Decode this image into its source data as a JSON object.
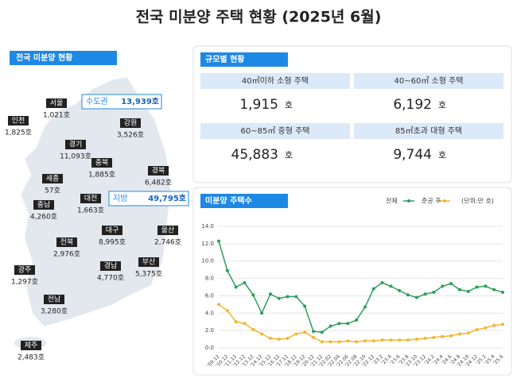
{
  "header": {
    "title": "전국 미분양 주택 현황  (2025년 6월)"
  },
  "map": {
    "label": "전국 미분양 현황",
    "callouts": [
      {
        "name": "수도권",
        "value": "13,939호"
      },
      {
        "name": "지방",
        "value": "49,795호"
      }
    ],
    "regions": [
      {
        "name": "서울",
        "value": "1,021호"
      },
      {
        "name": "인천",
        "value": "1,825호"
      },
      {
        "name": "경기",
        "value": "11,093호"
      },
      {
        "name": "강원",
        "value": "3,526호"
      },
      {
        "name": "충북",
        "value": "1,885호"
      },
      {
        "name": "경북",
        "value": "6,482호"
      },
      {
        "name": "세종",
        "value": "57호"
      },
      {
        "name": "충남",
        "value": "4,260호"
      },
      {
        "name": "대전",
        "value": "1,663호"
      },
      {
        "name": "대구",
        "value": "8,995호"
      },
      {
        "name": "울산",
        "value": "2,746호"
      },
      {
        "name": "전북",
        "value": "2,976호"
      },
      {
        "name": "경남",
        "value": "4,770호"
      },
      {
        "name": "부산",
        "value": "5,375호"
      },
      {
        "name": "광주",
        "value": "1,297호"
      },
      {
        "name": "전남",
        "value": "3,280호"
      },
      {
        "name": "제주",
        "value": "2,483호"
      }
    ]
  },
  "size_table": {
    "label": "규모별 현황",
    "cells": [
      {
        "name": "40㎡이하 소형 주택",
        "value": "1,915",
        "unit": "호"
      },
      {
        "name": "40~60㎡ 소형 주택",
        "value": "6,192",
        "unit": "호"
      },
      {
        "name": "60~85㎡ 중형 주택",
        "value": "45,883",
        "unit": "호"
      },
      {
        "name": "85㎡초과 대형 주택",
        "value": "9,744",
        "unit": "호"
      }
    ]
  },
  "chart_data": {
    "type": "line",
    "title": "미분양 주택수",
    "unit_note": "(단위:만 호)",
    "categories": [
      "'09.12",
      "'10.12",
      "'11.12",
      "'12.12",
      "'13.12",
      "'14.12",
      "'15.12",
      "'16.12",
      "'17.12",
      "'18.12",
      "'19.12",
      "'20.12",
      "'21.12",
      "'22.02",
      "'22.04",
      "'22.06",
      "'22.08",
      "'22.10",
      "'22.12",
      "'23.2",
      "'23.4",
      "'23.6",
      "'23.8",
      "'23.10",
      "'23.12",
      "'24.2",
      "'24.4",
      "'24.6",
      "'24.8",
      "'24.10",
      "'24.12",
      "'25.2",
      "'25.4",
      "'25.6"
    ],
    "series": [
      {
        "name": "전체",
        "color": "#2e9e5b",
        "values": [
          12.3,
          8.9,
          7.0,
          7.5,
          6.1,
          4.0,
          6.2,
          5.7,
          5.9,
          5.9,
          4.8,
          1.9,
          1.8,
          2.5,
          2.8,
          2.8,
          3.2,
          4.7,
          6.8,
          7.5,
          7.1,
          6.6,
          6.1,
          5.8,
          6.2,
          6.4,
          7.1,
          7.4,
          6.7,
          6.5,
          7.0,
          7.1,
          6.7,
          6.4
        ]
      },
      {
        "name": "준공 후",
        "color": "#f2b632",
        "values": [
          5.0,
          4.3,
          3.0,
          2.8,
          2.1,
          1.6,
          1.1,
          1.0,
          1.1,
          1.6,
          1.8,
          1.2,
          0.7,
          0.7,
          0.7,
          0.8,
          0.7,
          0.8,
          0.8,
          0.9,
          0.9,
          0.9,
          0.9,
          1.0,
          1.1,
          1.2,
          1.3,
          1.4,
          1.6,
          1.7,
          2.1,
          2.3,
          2.6,
          2.7
        ]
      }
    ],
    "ylim": [
      0,
      14
    ],
    "yticks": [
      {
        "value": 0,
        "label": "0.0"
      },
      {
        "value": 2,
        "label": "2.0"
      },
      {
        "value": 4,
        "label": "4.0"
      },
      {
        "value": 6,
        "label": "6.0"
      },
      {
        "value": 8,
        "label": "8.0"
      },
      {
        "value": 10,
        "label": "10.0"
      },
      {
        "value": 12,
        "label": "12.0"
      },
      {
        "value": 14,
        "label": "14.0"
      }
    ],
    "grid": true
  }
}
